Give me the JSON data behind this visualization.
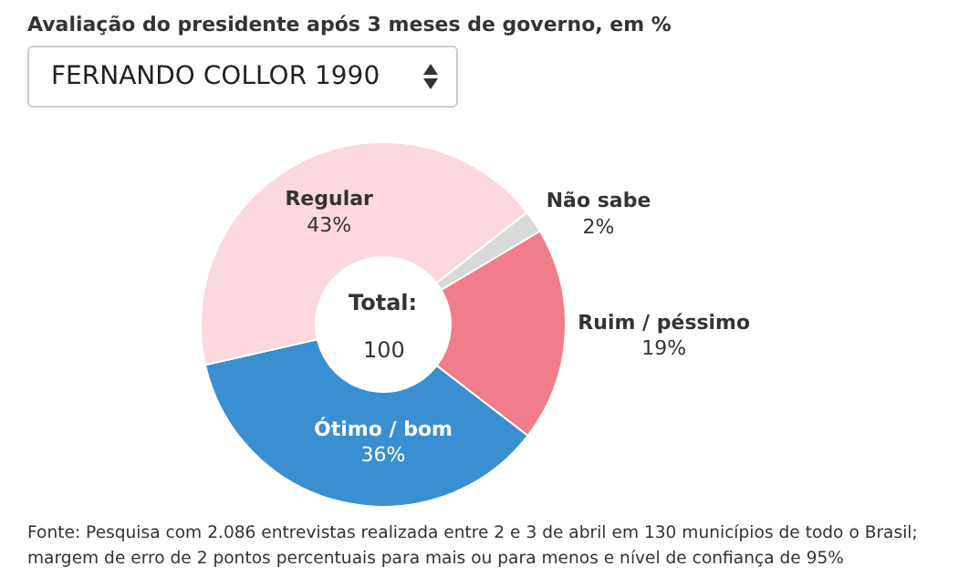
{
  "chart_data": {
    "type": "donut",
    "title": "Avaliação do presidente após 3 meses de governo, em %",
    "subtitle": "FERNANDO COLLOR 1990",
    "categories": [
      "Não sabe",
      "Ruim / péssimo",
      "Ótimo / bom",
      "Regular"
    ],
    "values": [
      2,
      19,
      36,
      43
    ],
    "colors": [
      "#d9d9d9",
      "#f07c8c",
      "#3a8fd0",
      "#fbd9de"
    ],
    "value_labels": [
      "2%",
      "19%",
      "36%",
      "43%"
    ],
    "annotations": [
      "Total:",
      "100",
      "Fonte: Pesquisa com 2.086 entrevistas realizada entre 2 e 3 de abril em 130 municípios de todo o Brasil; margem de erro de 2 pontos percentuais para mais ou para menos e nível de confiança de 95%"
    ],
    "legend": false
  }
}
